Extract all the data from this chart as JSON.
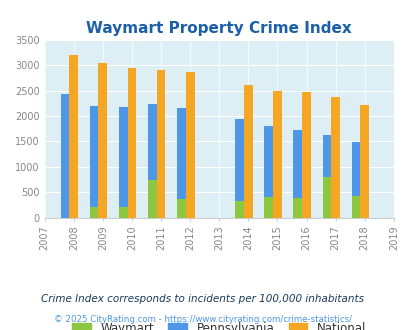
{
  "title": "Waymart Property Crime Index",
  "all_years": [
    2007,
    2008,
    2009,
    2010,
    2011,
    2012,
    2013,
    2014,
    2015,
    2016,
    2017,
    2018,
    2019
  ],
  "data_years": [
    2008,
    2009,
    2010,
    2011,
    2012,
    2014,
    2015,
    2016,
    2017,
    2018
  ],
  "waymart": [
    0,
    220,
    220,
    750,
    370,
    330,
    400,
    390,
    800,
    430
  ],
  "pennsylvania": [
    2430,
    2200,
    2170,
    2240,
    2160,
    1940,
    1800,
    1720,
    1630,
    1490
  ],
  "national": [
    3200,
    3040,
    2950,
    2900,
    2860,
    2600,
    2500,
    2470,
    2380,
    2210
  ],
  "waymart_color": "#8dc63f",
  "pennsylvania_color": "#4d96e8",
  "national_color": "#f5a623",
  "bg_color": "#ddeef5",
  "ylim": [
    0,
    3500
  ],
  "yticks": [
    0,
    500,
    1000,
    1500,
    2000,
    2500,
    3000,
    3500
  ],
  "bar_width": 0.3,
  "legend_labels": [
    "Waymart",
    "Pennsylvania",
    "National"
  ],
  "footnote1": "Crime Index corresponds to incidents per 100,000 inhabitants",
  "footnote2": "© 2025 CityRating.com - https://www.cityrating.com/crime-statistics/",
  "title_color": "#1a5fa8",
  "footnote1_color": "#1a3a5c",
  "footnote2_color": "#4d96e8"
}
